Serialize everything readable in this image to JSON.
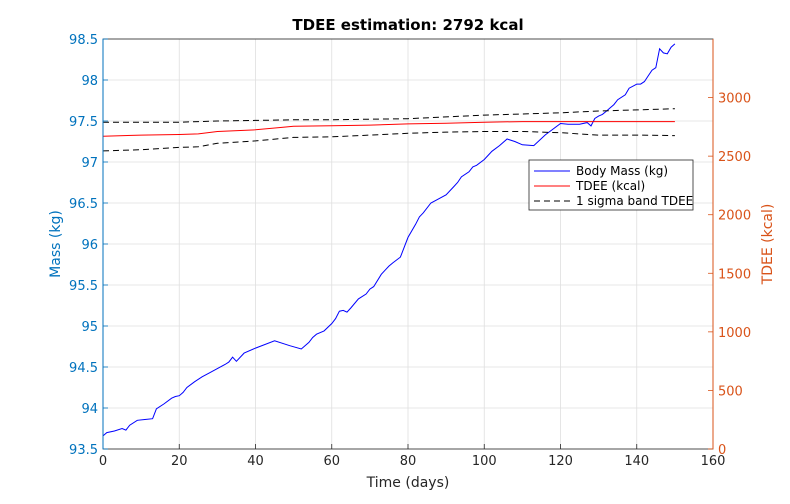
{
  "chart_data": {
    "type": "line",
    "title": "TDEE estimation: 2792 kcal",
    "xlabel": "Time (days)",
    "ylabel_left": "Mass (kg)",
    "ylabel_right": "TDEE (kcal)",
    "xlim": [
      0,
      160
    ],
    "ylim_left": [
      93.5,
      98.5
    ],
    "ylim_right": [
      0,
      3500
    ],
    "x_ticks": [
      0,
      20,
      40,
      60,
      80,
      100,
      120,
      140,
      160
    ],
    "y_left_ticks": [
      93.5,
      94,
      94.5,
      95,
      95.5,
      96,
      96.5,
      97,
      97.5,
      98,
      98.5
    ],
    "y_right_ticks": [
      0,
      500,
      1000,
      1500,
      2000,
      2500,
      3000
    ],
    "grid": true,
    "legend_position": "right-middle",
    "colors": {
      "mass": "#0000ff",
      "tdee": "#ff0000",
      "band": "#000000",
      "left_axis": "#0072bd",
      "right_axis": "#d95319"
    },
    "series": [
      {
        "name": "Body Mass (kg)",
        "axis": "left",
        "style": "solid",
        "x": [
          0,
          1,
          3,
          5,
          6,
          7,
          9,
          11,
          13,
          14,
          16,
          18,
          19,
          20,
          21,
          22,
          24,
          26,
          28,
          30,
          32,
          33,
          34,
          35,
          37,
          40,
          45,
          49,
          52,
          54,
          55,
          56,
          58,
          60,
          61,
          62,
          63,
          64,
          65,
          67,
          69,
          70,
          71,
          73,
          74,
          75,
          76,
          78,
          80,
          82,
          83,
          84,
          86,
          88,
          90,
          92,
          93,
          94,
          96,
          97,
          98,
          100,
          101,
          102,
          104,
          106,
          108,
          110,
          113,
          116,
          120,
          122,
          125,
          127,
          128,
          129,
          130,
          131,
          132,
          133,
          134,
          135,
          137,
          138,
          140,
          141,
          142,
          143,
          144,
          145,
          146,
          147,
          148,
          149,
          150
        ],
        "values": [
          93.66,
          93.7,
          93.72,
          93.75,
          93.73,
          93.79,
          93.85,
          93.86,
          93.87,
          93.99,
          94.05,
          94.12,
          94.14,
          94.15,
          94.19,
          94.25,
          94.32,
          94.38,
          94.43,
          94.48,
          94.53,
          94.56,
          94.62,
          94.57,
          94.67,
          94.73,
          94.82,
          94.76,
          94.72,
          94.8,
          94.86,
          94.9,
          94.94,
          95.03,
          95.09,
          95.18,
          95.19,
          95.17,
          95.22,
          95.33,
          95.39,
          95.45,
          95.48,
          95.63,
          95.68,
          95.73,
          95.77,
          95.84,
          96.08,
          96.24,
          96.33,
          96.38,
          96.5,
          96.55,
          96.6,
          96.7,
          96.75,
          96.82,
          96.88,
          96.94,
          96.96,
          97.03,
          97.08,
          97.13,
          97.2,
          97.28,
          97.25,
          97.21,
          97.2,
          97.33,
          97.47,
          97.46,
          97.46,
          97.48,
          97.44,
          97.53,
          97.56,
          97.58,
          97.62,
          97.66,
          97.7,
          97.76,
          97.82,
          97.9,
          97.95,
          97.95,
          97.98,
          98.05,
          98.12,
          98.15,
          98.38,
          98.33,
          98.32,
          98.4,
          98.44
        ]
      },
      {
        "name": "TDEE (kcal)",
        "axis": "right",
        "style": "solid",
        "x": [
          0,
          10,
          20,
          25,
          30,
          40,
          50,
          60,
          70,
          80,
          90,
          100,
          110,
          120,
          130,
          140,
          150
        ],
        "values": [
          2670,
          2680,
          2685,
          2690,
          2710,
          2725,
          2755,
          2760,
          2765,
          2775,
          2780,
          2790,
          2795,
          2795,
          2795,
          2795,
          2795
        ]
      },
      {
        "name": "1 sigma band TDEE",
        "axis": "right",
        "style": "dashed",
        "x": [
          0,
          10,
          20,
          25,
          30,
          40,
          50,
          60,
          70,
          80,
          90,
          100,
          110,
          120,
          130,
          140,
          150
        ],
        "values": [
          2790,
          2790,
          2790,
          2795,
          2800,
          2805,
          2810,
          2810,
          2815,
          2820,
          2835,
          2850,
          2860,
          2870,
          2885,
          2895,
          2905
        ]
      },
      {
        "name": "",
        "axis": "right",
        "style": "dashed",
        "x": [
          0,
          10,
          20,
          25,
          30,
          40,
          50,
          60,
          70,
          80,
          90,
          100,
          110,
          120,
          130,
          140,
          150
        ],
        "values": [
          2545,
          2555,
          2575,
          2580,
          2610,
          2630,
          2660,
          2665,
          2680,
          2695,
          2705,
          2710,
          2710,
          2700,
          2680,
          2680,
          2675
        ]
      }
    ]
  }
}
